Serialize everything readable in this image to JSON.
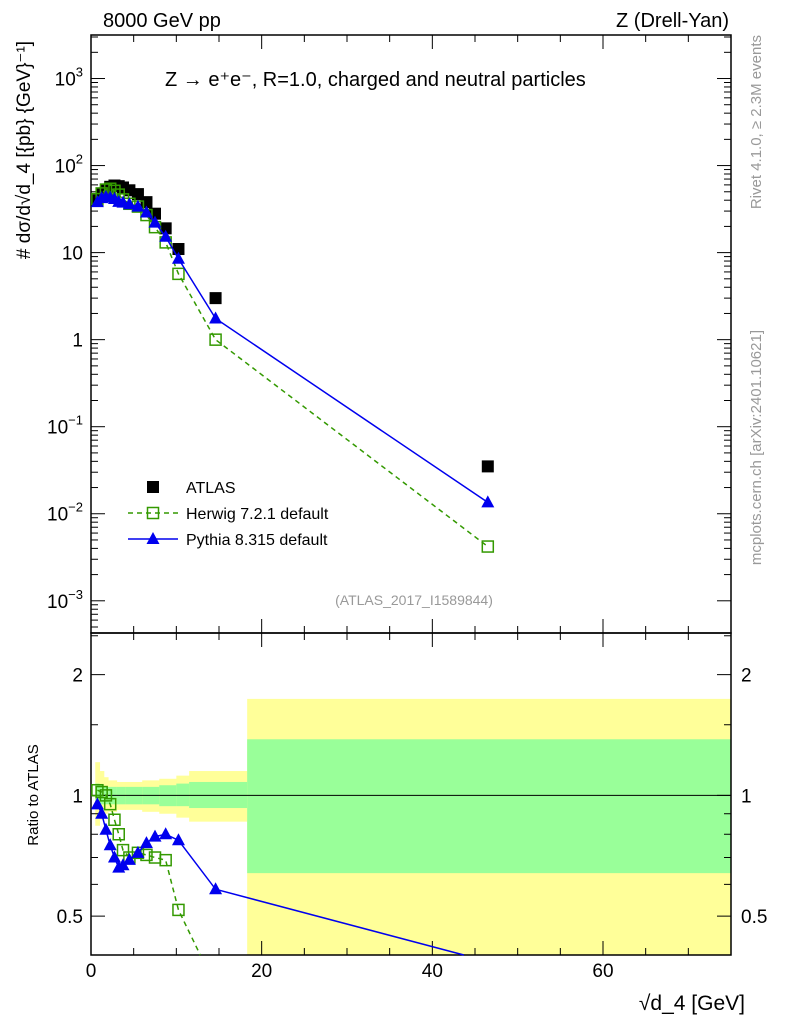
{
  "chart_data": {
    "type": "line",
    "header_left": "8000 GeV pp",
    "header_right": "Z (Drell-Yan)",
    "title": "Z → e⁺e⁻, R=1.0, charged and neutral particles",
    "xlabel": "√d_4 [GeV]",
    "ylabel": "# dσ/d√d_4 [{pb} {GeV}⁻¹]",
    "ratio_ylabel": "Ratio to ATLAS",
    "side_label_top": "Rivet 4.1.0, ≥ 2.3M events",
    "side_label_bottom": "mcplots.cern.ch [arXiv:2401.10621]",
    "analysis_label": "(ATLAS_2017_I1589844)",
    "xlim": [
      0,
      75
    ],
    "ylim_log10": [
      -3.37,
      3.5
    ],
    "ratio_ylim": [
      0.4,
      2.54
    ],
    "x_ticks": [
      "0",
      "20",
      "40",
      "60"
    ],
    "x_tick_values": [
      0,
      20,
      40,
      60
    ],
    "y_ticks": [
      {
        "exp": 3,
        "label": "10",
        "sup": "3"
      },
      {
        "exp": 2,
        "label": "10",
        "sup": "2"
      },
      {
        "exp": 1,
        "label": "10",
        "sup": ""
      },
      {
        "exp": 0,
        "label": "1",
        "sup": ""
      },
      {
        "exp": -1,
        "label": "10",
        "sup": "−1"
      },
      {
        "exp": -2,
        "label": "10",
        "sup": "−2"
      },
      {
        "exp": -3,
        "label": "10",
        "sup": "−3"
      }
    ],
    "ratio_ticks": [
      {
        "v": 0.5,
        "label": "0.5"
      },
      {
        "v": 1,
        "label": "1"
      },
      {
        "v": 2,
        "label": "2"
      }
    ],
    "x": [
      0.75,
      1.25,
      1.75,
      2.25,
      2.75,
      3.25,
      3.75,
      4.5,
      5.5,
      6.5,
      7.5,
      8.75,
      10.25,
      14.6,
      46.5
    ],
    "series": [
      {
        "name": "ATLAS",
        "style": "marker-square",
        "color": "#000000",
        "values": [
          40,
          47,
          53,
          57,
          59,
          58,
          56,
          52,
          47,
          38,
          28,
          19,
          11,
          3.0,
          0.035
        ]
      },
      {
        "name": "Herwig 7.2.1 default",
        "style": "dashed-open-square",
        "color": "#339900",
        "values": [
          41.2,
          47.9,
          53,
          54.2,
          51.3,
          46.4,
          40.9,
          36.4,
          33.8,
          27,
          19.6,
          13.1,
          5.7,
          1.0,
          0.0042
        ]
      },
      {
        "name": "Pythia 8.315 default",
        "style": "solid-triangle",
        "color": "#0000ee",
        "values": [
          38,
          42.3,
          43.5,
          42.8,
          41.3,
          38.3,
          37.5,
          35.9,
          33.8,
          28.9,
          22.1,
          15.2,
          8.5,
          1.75,
          0.0135
        ]
      }
    ],
    "ratio_bands": {
      "edges": [
        0.5,
        1,
        1.5,
        2,
        3,
        4,
        6,
        8,
        10,
        11.5,
        18.3,
        75
      ],
      "yellow_lo": [
        0.84,
        0.87,
        0.9,
        0.91,
        0.92,
        0.92,
        0.91,
        0.9,
        0.88,
        0.86,
        0.2
      ],
      "yellow_hi": [
        1.21,
        1.15,
        1.11,
        1.09,
        1.08,
        1.08,
        1.09,
        1.1,
        1.12,
        1.15,
        1.74
      ],
      "green_lo": [
        0.94,
        0.95,
        0.95,
        0.95,
        0.95,
        0.95,
        0.95,
        0.94,
        0.94,
        0.93,
        0.64
      ],
      "green_hi": [
        1.07,
        1.06,
        1.05,
        1.05,
        1.05,
        1.05,
        1.05,
        1.06,
        1.07,
        1.08,
        1.38
      ],
      "yellow_color": "#ffff99",
      "green_color": "#99ff99"
    }
  }
}
